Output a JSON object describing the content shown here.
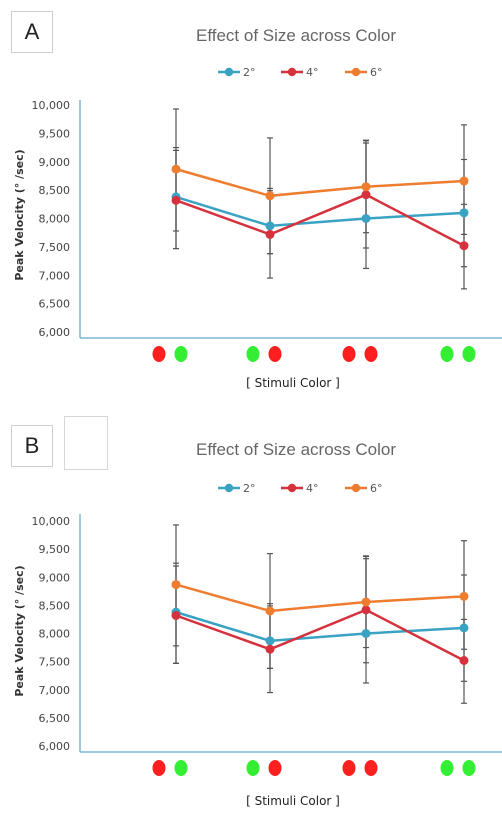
{
  "colors": {
    "s2": "#3aa3c4",
    "s4": "#d6323e",
    "s6": "#ee7d30",
    "error_bar": "#555555",
    "axis": "#7fb7d0",
    "dot_red": "#ff1f1f",
    "dot_green": "#33ee33"
  },
  "chart_data": [
    {
      "type": "line",
      "panel_label": "A",
      "title": "Effect of Size across Color",
      "xlabel": "[ Stimuli Color ]",
      "ylabel": "Peak Velocity (° /sec)",
      "ylim": [
        6000,
        10000
      ],
      "yticks": [
        "10,000",
        "9,500",
        "9,000",
        "8,500",
        "8,000",
        "7,500",
        "7,000",
        "6,500",
        "6,000"
      ],
      "ytick_values": [
        10000,
        9500,
        9000,
        8500,
        8000,
        7500,
        7000,
        6500,
        6000
      ],
      "categories": [
        "red-green",
        "green-red",
        "red-red",
        "green-green"
      ],
      "category_dots": [
        [
          "red",
          "green"
        ],
        [
          "green",
          "red"
        ],
        [
          "red",
          "red"
        ],
        [
          "green",
          "green"
        ]
      ],
      "legend_position": "top",
      "grid": false,
      "series": [
        {
          "name": "2°",
          "color_key": "s2",
          "values": [
            8380,
            7870,
            8000,
            8100
          ],
          "err_low": [
            7470,
            7380,
            7480,
            7150
          ],
          "err_high": [
            9200,
            8530,
            9330,
            9040
          ]
        },
        {
          "name": "4°",
          "color_key": "s4",
          "values": [
            8320,
            7720,
            8420,
            7520
          ],
          "err_low": [
            7470,
            6950,
            7120,
            6760
          ],
          "err_high": [
            9250,
            8490,
            9370,
            8250
          ]
        },
        {
          "name": "6°",
          "color_key": "s6",
          "values": [
            8870,
            8400,
            8560,
            8660
          ],
          "err_low": [
            7780,
            7380,
            7750,
            7720
          ],
          "err_high": [
            9930,
            9420,
            9380,
            9650
          ]
        }
      ]
    },
    {
      "type": "line",
      "panel_label": "B",
      "title": "Effect of Size across Color",
      "xlabel": "[ Stimuli Color ]",
      "ylabel": "Peak Velocity (° /sec)",
      "ylim": [
        6000,
        10000
      ],
      "yticks": [
        "10,000",
        "9,500",
        "9,000",
        "8,500",
        "8,000",
        "7,500",
        "7,000",
        "6,500",
        "6,000"
      ],
      "ytick_values": [
        10000,
        9500,
        9000,
        8500,
        8000,
        7500,
        7000,
        6500,
        6000
      ],
      "categories": [
        "red-green",
        "green-red",
        "red-red",
        "green-green"
      ],
      "category_dots": [
        [
          "red",
          "green"
        ],
        [
          "green",
          "red"
        ],
        [
          "red",
          "red"
        ],
        [
          "green",
          "green"
        ]
      ],
      "legend_position": "top",
      "grid": false,
      "series": [
        {
          "name": "2°",
          "color_key": "s2",
          "values": [
            8380,
            7870,
            8000,
            8100
          ],
          "err_low": [
            7470,
            7380,
            7480,
            7150
          ],
          "err_high": [
            9200,
            8530,
            9330,
            9040
          ]
        },
        {
          "name": "4°",
          "color_key": "s4",
          "values": [
            8320,
            7720,
            8420,
            7520
          ],
          "err_low": [
            7470,
            6950,
            7120,
            6760
          ],
          "err_high": [
            9250,
            8490,
            9370,
            8250
          ]
        },
        {
          "name": "6°",
          "color_key": "s6",
          "values": [
            8870,
            8400,
            8560,
            8660
          ],
          "err_low": [
            7780,
            7380,
            7750,
            7720
          ],
          "err_high": [
            9930,
            9420,
            9380,
            9650
          ]
        }
      ]
    }
  ]
}
